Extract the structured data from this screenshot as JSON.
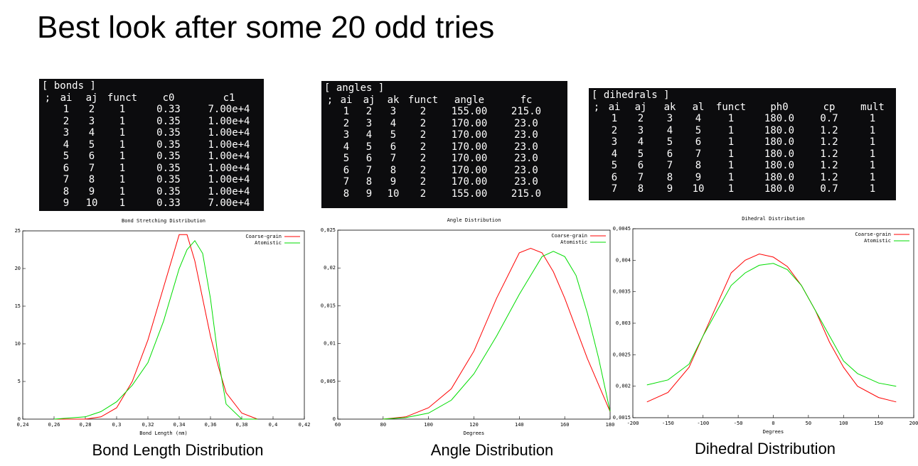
{
  "title": "Best look after some 20 odd tries",
  "tables": [
    {
      "title": "[ bonds ]",
      "header": [
        ";",
        "ai",
        "aj",
        "funct",
        "c0",
        "c1"
      ],
      "rows": [
        [
          "1",
          "2",
          "1",
          "0.33",
          "7.00e+4"
        ],
        [
          "2",
          "3",
          "1",
          "0.35",
          "1.00e+4"
        ],
        [
          "3",
          "4",
          "1",
          "0.35",
          "1.00e+4"
        ],
        [
          "4",
          "5",
          "1",
          "0.35",
          "1.00e+4"
        ],
        [
          "5",
          "6",
          "1",
          "0.35",
          "1.00e+4"
        ],
        [
          "6",
          "7",
          "1",
          "0.35",
          "1.00e+4"
        ],
        [
          "7",
          "8",
          "1",
          "0.35",
          "1.00e+4"
        ],
        [
          "8",
          "9",
          "1",
          "0.35",
          "1.00e+4"
        ],
        [
          "9",
          "10",
          "1",
          "0.33",
          "7.00e+4"
        ]
      ]
    },
    {
      "title": "[ angles ]",
      "header": [
        ";",
        "ai",
        "aj",
        "ak",
        "funct",
        "angle",
        "fc"
      ],
      "rows": [
        [
          "1",
          "2",
          "3",
          "2",
          "155.00",
          "215.0"
        ],
        [
          "2",
          "3",
          "4",
          "2",
          "170.00",
          "23.0"
        ],
        [
          "3",
          "4",
          "5",
          "2",
          "170.00",
          "23.0"
        ],
        [
          "4",
          "5",
          "6",
          "2",
          "170.00",
          "23.0"
        ],
        [
          "5",
          "6",
          "7",
          "2",
          "170.00",
          "23.0"
        ],
        [
          "6",
          "7",
          "8",
          "2",
          "170.00",
          "23.0"
        ],
        [
          "7",
          "8",
          "9",
          "2",
          "170.00",
          "23.0"
        ],
        [
          "8",
          "9",
          "10",
          "2",
          "155.00",
          "215.0"
        ]
      ]
    },
    {
      "title": "[ dihedrals ]",
      "header": [
        ";",
        "ai",
        "aj",
        "ak",
        "al",
        "funct",
        "ph0",
        "cp",
        "mult"
      ],
      "rows": [
        [
          "1",
          "2",
          "3",
          "4",
          "1",
          "180.0",
          "0.7",
          "1"
        ],
        [
          "2",
          "3",
          "4",
          "5",
          "1",
          "180.0",
          "1.2",
          "1"
        ],
        [
          "3",
          "4",
          "5",
          "6",
          "1",
          "180.0",
          "1.2",
          "1"
        ],
        [
          "4",
          "5",
          "6",
          "7",
          "1",
          "180.0",
          "1.2",
          "1"
        ],
        [
          "5",
          "6",
          "7",
          "8",
          "1",
          "180.0",
          "1.2",
          "1"
        ],
        [
          "6",
          "7",
          "8",
          "9",
          "1",
          "180.0",
          "1.2",
          "1"
        ],
        [
          "7",
          "8",
          "9",
          "10",
          "1",
          "180.0",
          "0.7",
          "1"
        ]
      ]
    }
  ],
  "chart_data": [
    {
      "type": "line",
      "title": "Bond Stretching Distribution",
      "x_label": "Bond Length (nm)",
      "caption": "Bond Length Distribution",
      "x": [
        0.26,
        0.28,
        0.29,
        0.3,
        0.31,
        0.32,
        0.33,
        0.34,
        0.345,
        0.35,
        0.355,
        0.36,
        0.365,
        0.37,
        0.38,
        0.39
      ],
      "series": [
        {
          "name": "Coarse-grain",
          "color": "#ff0000",
          "values": [
            0,
            0,
            0.3,
            1.5,
            5,
            10.5,
            17.5,
            24.5,
            24.5,
            21,
            16,
            11,
            7,
            3.5,
            0.8,
            0
          ]
        },
        {
          "name": "Atomistic",
          "color": "#00dd00",
          "values": [
            0,
            0.3,
            1,
            2.3,
            4.5,
            7.5,
            13,
            20,
            22.5,
            23.7,
            22,
            16,
            8,
            2,
            0,
            0
          ]
        }
      ],
      "xlim": [
        0.24,
        0.42
      ],
      "xticks": [
        {
          "value": 0.24,
          "label": "0,24"
        },
        {
          "value": 0.26,
          "label": "0,26"
        },
        {
          "value": 0.28,
          "label": "0,28"
        },
        {
          "value": 0.3,
          "label": "0,3"
        },
        {
          "value": 0.32,
          "label": "0,32"
        },
        {
          "value": 0.34,
          "label": "0,34"
        },
        {
          "value": 0.36,
          "label": "0,36"
        },
        {
          "value": 0.38,
          "label": "0,38"
        },
        {
          "value": 0.4,
          "label": "0,4"
        },
        {
          "value": 0.42,
          "label": "0,42"
        }
      ],
      "ylim": [
        0,
        25
      ],
      "yticks": [
        0,
        5,
        10,
        15,
        20,
        25
      ],
      "legend": "top-right"
    },
    {
      "type": "line",
      "title": "Angle Distribution",
      "x_label": "Degrees",
      "caption": "Angle Distribution",
      "x": [
        80,
        90,
        100,
        110,
        120,
        130,
        140,
        145,
        150,
        155,
        160,
        165,
        170,
        175,
        180
      ],
      "series": [
        {
          "name": "Coarse-grain",
          "color": "#ff0000",
          "values": [
            0,
            0.0003,
            0.0015,
            0.004,
            0.009,
            0.016,
            0.022,
            0.0226,
            0.022,
            0.0195,
            0.016,
            0.012,
            0.008,
            0.0045,
            0.001
          ]
        },
        {
          "name": "Atomistic",
          "color": "#00dd00",
          "values": [
            0,
            0.0002,
            0.0008,
            0.0025,
            0.006,
            0.011,
            0.0165,
            0.019,
            0.0215,
            0.0222,
            0.0215,
            0.019,
            0.014,
            0.008,
            0.001
          ]
        }
      ],
      "xlim": [
        60,
        180
      ],
      "xticks": [
        60,
        80,
        100,
        120,
        140,
        160,
        180
      ],
      "ylim": [
        0,
        0.025
      ],
      "yticks": [
        0,
        {
          "value": 0.005,
          "label": "0,005"
        },
        {
          "value": 0.01,
          "label": "0,01"
        },
        {
          "value": 0.015,
          "label": "0,015"
        },
        {
          "value": 0.02,
          "label": "0,02"
        },
        {
          "value": 0.025,
          "label": "0,025"
        }
      ],
      "legend": "top-right"
    },
    {
      "type": "line",
      "title": "Dihedral Distribution",
      "x_label": "Degrees",
      "caption": "Dihedral Distribution",
      "x": [
        -180,
        -150,
        -120,
        -100,
        -80,
        -60,
        -40,
        -20,
        0,
        20,
        40,
        60,
        80,
        100,
        120,
        150,
        175
      ],
      "series": [
        {
          "name": "Coarse-grain",
          "color": "#ff0000",
          "values": [
            0.00175,
            0.0019,
            0.0023,
            0.0028,
            0.0033,
            0.0038,
            0.004,
            0.0041,
            0.00405,
            0.0039,
            0.0036,
            0.0032,
            0.0027,
            0.0023,
            0.002,
            0.00182,
            0.00175
          ]
        },
        {
          "name": "Atomistic",
          "color": "#00dd00",
          "values": [
            0.00202,
            0.0021,
            0.00235,
            0.0028,
            0.0032,
            0.0036,
            0.0038,
            0.00392,
            0.00395,
            0.00385,
            0.0036,
            0.0032,
            0.0028,
            0.0024,
            0.0022,
            0.00205,
            0.002
          ]
        }
      ],
      "xlim": [
        -200,
        200
      ],
      "xticks": [
        -200,
        -150,
        -100,
        -50,
        0,
        50,
        100,
        150,
        200
      ],
      "ylim": [
        0.0015,
        0.0045
      ],
      "yticks": [
        {
          "value": 0.0015,
          "label": "0,0015"
        },
        {
          "value": 0.002,
          "label": "0,002"
        },
        {
          "value": 0.0025,
          "label": "0,0025"
        },
        {
          "value": 0.003,
          "label": "0,003"
        },
        {
          "value": 0.0035,
          "label": "0,0035"
        },
        {
          "value": 0.004,
          "label": "0,004"
        },
        {
          "value": 0.0045,
          "label": "0,0045"
        }
      ],
      "legend": "top-right"
    }
  ]
}
